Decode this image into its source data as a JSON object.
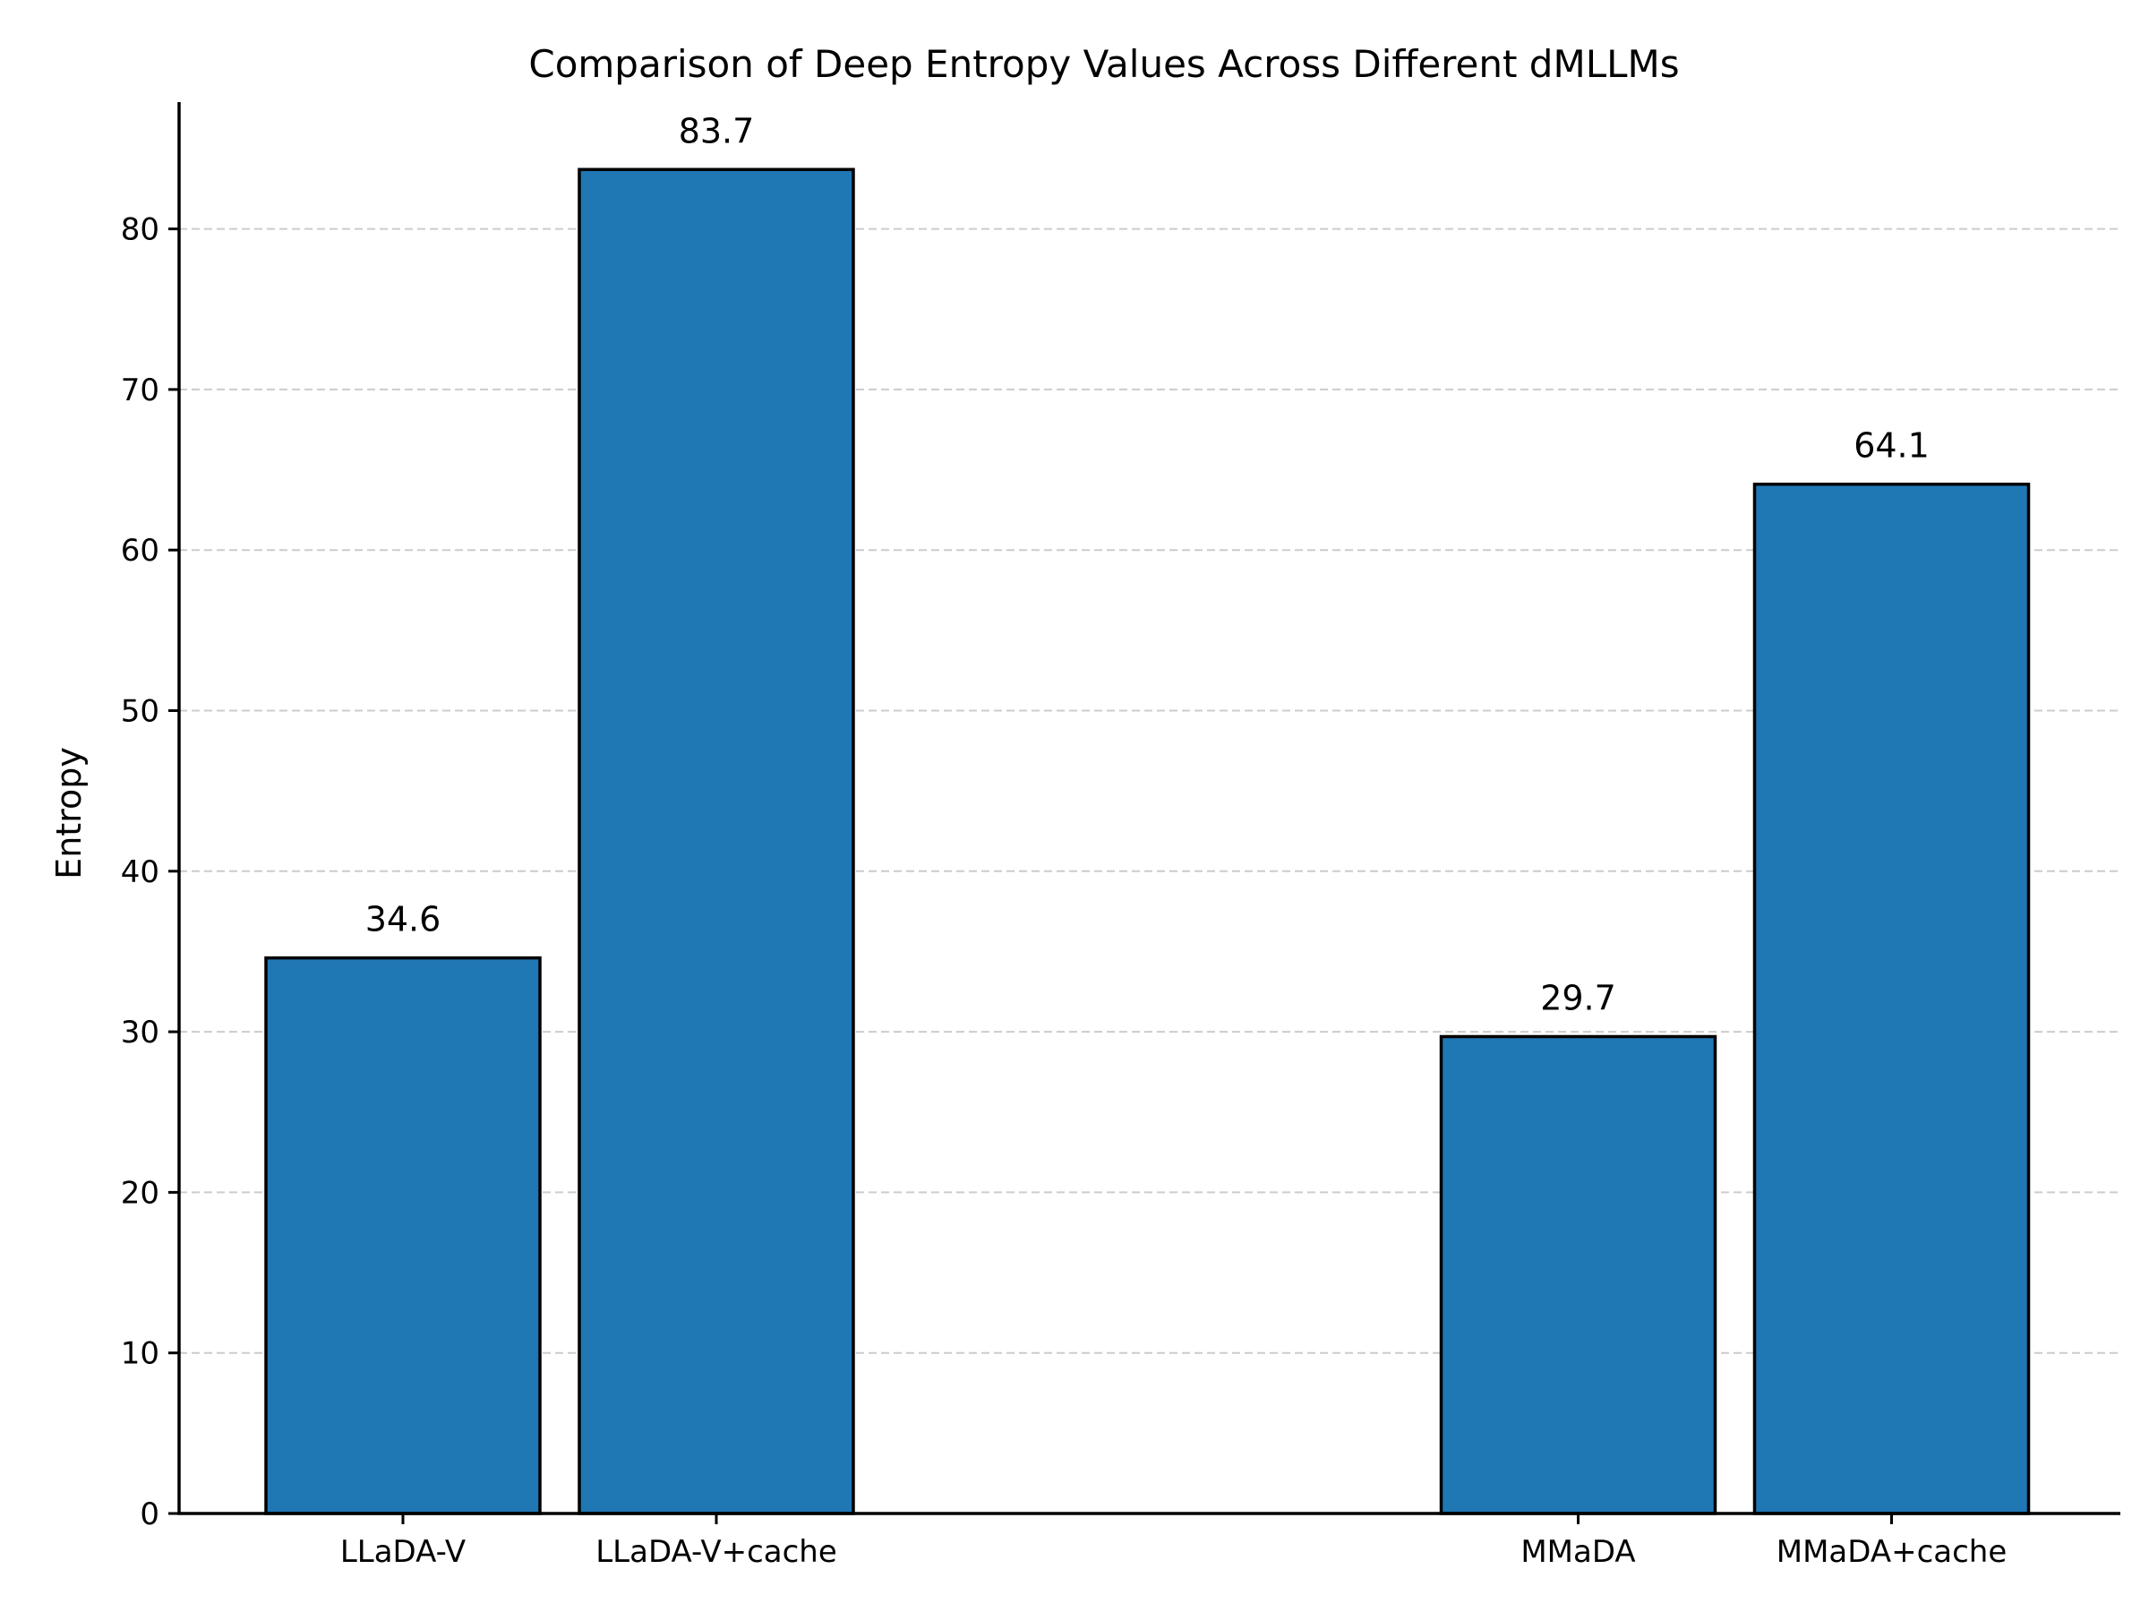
{
  "chart_data": {
    "type": "bar",
    "title": "Comparison of Deep Entropy Values Across Different dMLLMs",
    "xlabel": "",
    "ylabel": "Entropy",
    "categories": [
      "LLaDA-V",
      "LLaDA-V+cache",
      "MMaDA",
      "MMaDA+cache"
    ],
    "x": [
      0,
      1,
      3.75,
      4.75
    ],
    "values": [
      34.6,
      83.7,
      29.7,
      64.1
    ],
    "value_labels": [
      "34.6",
      "83.7",
      "29.7",
      "64.1"
    ],
    "ylim": [
      0,
      88
    ],
    "yticks": [
      0,
      10,
      20,
      30,
      40,
      50,
      60,
      70,
      80
    ],
    "grid": "y-dashed",
    "bar_color": "#1f77b4",
    "edge_color": "#000000"
  }
}
